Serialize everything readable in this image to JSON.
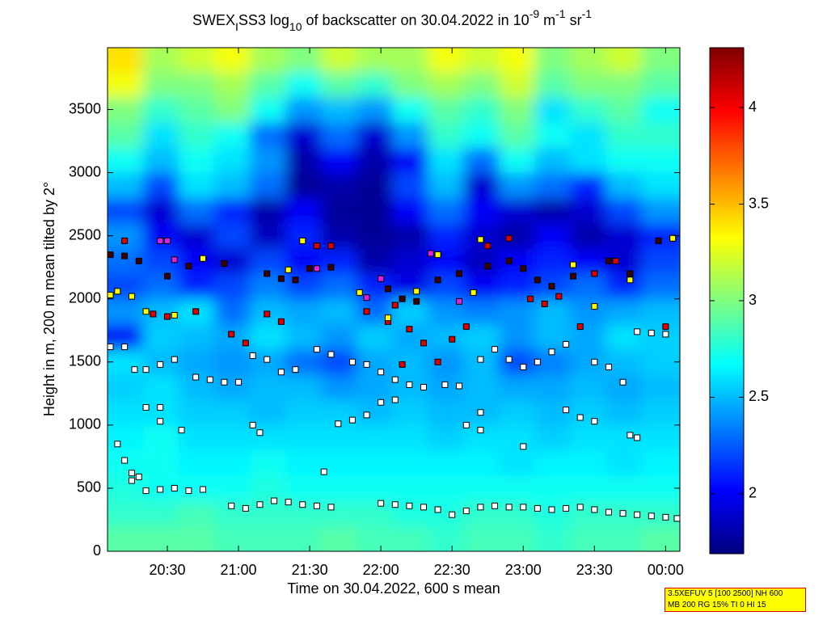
{
  "chart_data": {
    "type": "heatmap",
    "title": [
      {
        "text": "SWEX",
        "style": "normal"
      },
      {
        "text": "I",
        "style": "sub"
      },
      {
        "text": "SS3 log",
        "style": "normal"
      },
      {
        "text": "10",
        "style": "sub"
      },
      {
        "text": " of backscatter on 30.04.2022 in 10",
        "style": "normal"
      },
      {
        "text": "-9",
        "style": "sup"
      },
      {
        "text": " m",
        "style": "normal"
      },
      {
        "text": "-1",
        "style": "sup"
      },
      {
        "text": " sr",
        "style": "normal"
      },
      {
        "text": "-1",
        "style": "sup"
      }
    ],
    "x_label": "Time on 30.04.2022, 600 s mean",
    "y_label": "Height in m, 200 m mean tilted by 2°",
    "annotation": [
      "3.5XEFUV 5 [100 2500] NH 600",
      "MB 200 RG 15% TI 0 HI 15"
    ],
    "xlim": [
      20.08,
      24.1
    ],
    "ylim": [
      0,
      3990
    ],
    "xticks": [
      {
        "value": 20.5,
        "label": "20:30"
      },
      {
        "value": 21,
        "label": "21:00"
      },
      {
        "value": 21.5,
        "label": "21:30"
      },
      {
        "value": 22,
        "label": "22:00"
      },
      {
        "value": 22.5,
        "label": "22:30"
      },
      {
        "value": 23,
        "label": "23:00"
      },
      {
        "value": 23.5,
        "label": "23:30"
      },
      {
        "value": 24,
        "label": "00:00"
      }
    ],
    "yticks": [
      0,
      500,
      1000,
      1500,
      2000,
      2500,
      3000,
      3500
    ],
    "colormap": "jet",
    "clim": [
      1.69,
      4.31
    ],
    "colorbar_ticks": [
      2,
      2.5,
      3,
      3.5,
      4
    ],
    "cell_width": 0.25,
    "cell_height": 200,
    "x": [
      20.205,
      20.455,
      20.705,
      20.955,
      21.205,
      21.455,
      21.705,
      21.955,
      22.205,
      22.455,
      22.705,
      22.955,
      23.205,
      23.455,
      23.705,
      23.955
    ],
    "y": [
      100,
      300,
      500,
      700,
      900,
      1100,
      1300,
      1500,
      1700,
      1900,
      2100,
      2300,
      2500,
      2700,
      2900,
      3100,
      3300,
      3500,
      3700,
      3900
    ],
    "z": [
      [
        2.9,
        2.9,
        2.9,
        2.85,
        2.85,
        2.85,
        2.9,
        2.85,
        2.85,
        2.8,
        2.85,
        2.85,
        2.8,
        2.85,
        2.85,
        2.9
      ],
      [
        2.8,
        2.8,
        2.85,
        2.8,
        2.8,
        2.8,
        2.8,
        2.8,
        2.75,
        2.75,
        2.8,
        2.8,
        2.75,
        2.8,
        2.8,
        2.8
      ],
      [
        2.75,
        2.7,
        2.7,
        2.7,
        2.75,
        2.7,
        2.7,
        2.7,
        2.7,
        2.7,
        2.7,
        2.7,
        2.7,
        2.7,
        2.7,
        2.7
      ],
      [
        2.7,
        2.7,
        2.65,
        2.65,
        2.7,
        2.65,
        2.65,
        2.65,
        2.65,
        2.65,
        2.65,
        2.6,
        2.65,
        2.65,
        2.6,
        2.65
      ],
      [
        2.65,
        2.7,
        2.6,
        2.6,
        2.6,
        2.6,
        2.6,
        2.6,
        2.6,
        2.55,
        2.6,
        2.6,
        2.55,
        2.6,
        2.6,
        2.6
      ],
      [
        2.6,
        2.6,
        2.55,
        2.55,
        2.5,
        2.55,
        2.55,
        2.5,
        2.55,
        2.5,
        2.5,
        2.55,
        2.5,
        2.55,
        2.5,
        2.55
      ],
      [
        2.55,
        2.6,
        2.5,
        2.45,
        2.5,
        2.5,
        2.4,
        2.45,
        2.5,
        2.45,
        2.5,
        2.45,
        2.45,
        2.5,
        2.45,
        2.5
      ],
      [
        2.6,
        2.5,
        2.45,
        2.4,
        2.45,
        2.3,
        2.2,
        2.45,
        2.5,
        2.4,
        2.5,
        2.2,
        2.35,
        2.45,
        2.5,
        2.55
      ],
      [
        2.0,
        2.55,
        2.5,
        2.45,
        2.6,
        2.5,
        2.4,
        2.55,
        2.45,
        2.5,
        2.55,
        2.4,
        2.5,
        2.45,
        2.6,
        2.55
      ],
      [
        2.4,
        2.5,
        2.6,
        2.3,
        2.5,
        2.45,
        2.5,
        2.3,
        2.55,
        2.4,
        2.35,
        2.4,
        2.5,
        2.4,
        2.45,
        2.5
      ],
      [
        2.2,
        2.3,
        2.1,
        2.2,
        2.35,
        2.2,
        2.3,
        2.1,
        1.95,
        2.2,
        2.0,
        2.1,
        2.2,
        2.3,
        2.1,
        2.3
      ],
      [
        2.3,
        2.2,
        2.0,
        1.9,
        2.2,
        2.0,
        2.1,
        1.8,
        1.9,
        2.0,
        1.85,
        2.0,
        2.1,
        2.0,
        1.9,
        2.2
      ],
      [
        2.4,
        2.0,
        1.9,
        2.2,
        1.85,
        2.1,
        1.8,
        1.75,
        1.8,
        2.1,
        1.9,
        1.8,
        2.0,
        1.8,
        1.9,
        2.1
      ],
      [
        2.2,
        1.9,
        2.3,
        2.1,
        1.8,
        2.0,
        1.75,
        1.75,
        2.0,
        2.3,
        2.0,
        1.9,
        1.8,
        1.9,
        2.2,
        2.4
      ],
      [
        2.5,
        2.2,
        2.6,
        2.5,
        2.3,
        1.75,
        1.8,
        1.75,
        2.2,
        2.5,
        1.9,
        2.4,
        2.3,
        2.1,
        2.5,
        2.6
      ],
      [
        2.7,
        2.5,
        2.7,
        2.6,
        2.4,
        1.8,
        2.0,
        1.8,
        2.0,
        2.6,
        2.3,
        2.7,
        2.5,
        2.6,
        2.7,
        2.7
      ],
      [
        2.9,
        2.6,
        2.8,
        2.7,
        2.3,
        1.9,
        2.3,
        1.9,
        2.4,
        2.8,
        2.7,
        2.9,
        2.7,
        2.6,
        2.8,
        2.8
      ],
      [
        3.0,
        2.8,
        2.9,
        3.0,
        2.7,
        2.4,
        2.5,
        2.4,
        2.7,
        2.9,
        2.8,
        3.0,
        2.6,
        2.8,
        2.9,
        2.7
      ],
      [
        3.3,
        3.0,
        3.0,
        3.1,
        2.9,
        2.7,
        2.9,
        2.8,
        3.0,
        3.1,
        3.0,
        3.2,
        2.9,
        3.0,
        3.0,
        2.9
      ],
      [
        3.4,
        3.1,
        3.2,
        3.3,
        3.1,
        3.0,
        3.2,
        3.1,
        3.1,
        3.3,
        3.2,
        3.3,
        3.0,
        3.1,
        3.2,
        3.0
      ]
    ],
    "series": [
      {
        "color": "#ffffff",
        "x": [
          20.25,
          20.3,
          20.35,
          20.45,
          20.55,
          20.65,
          20.75,
          20.95,
          21.05,
          21.15,
          21.25,
          21.35,
          21.45,
          21.55,
          21.65,
          22.0,
          22.1,
          22.2,
          22.3,
          22.4,
          22.5,
          22.6,
          22.7,
          22.8,
          22.9,
          23.0,
          23.1,
          23.2,
          23.3,
          23.4,
          23.5,
          23.6,
          23.7,
          23.8,
          23.9,
          24.0,
          24.08,
          20.1,
          20.2,
          20.27,
          20.35,
          20.45,
          20.55,
          20.7,
          20.8,
          20.9,
          21.0,
          21.1,
          21.2,
          21.3,
          21.4,
          21.55,
          21.65,
          21.8,
          21.9,
          22.0,
          22.1,
          22.2,
          22.3,
          22.45,
          22.55,
          22.7,
          22.8,
          22.9,
          23.0,
          23.1,
          23.2,
          23.3,
          23.5,
          23.6,
          23.7,
          23.8,
          23.9,
          24.0,
          20.35,
          20.45,
          21.1,
          21.15,
          21.7,
          21.8,
          21.9,
          22.0,
          22.1,
          22.6,
          22.7,
          23.3,
          23.4,
          23.5,
          23.75,
          23.8,
          20.15,
          20.2,
          20.25,
          20.45,
          20.6,
          21.6,
          22.7,
          23.0
        ],
        "y": [
          620,
          590,
          480,
          490,
          500,
          480,
          490,
          360,
          340,
          370,
          400,
          390,
          370,
          360,
          350,
          380,
          370,
          360,
          350,
          330,
          290,
          320,
          350,
          360,
          350,
          350,
          340,
          330,
          340,
          350,
          330,
          310,
          300,
          290,
          280,
          270,
          260,
          1620,
          1620,
          1440,
          1440,
          1480,
          1520,
          1380,
          1360,
          1340,
          1340,
          1550,
          1520,
          1420,
          1440,
          1600,
          1560,
          1500,
          1480,
          1420,
          1360,
          1320,
          1300,
          1320,
          1310,
          1520,
          1600,
          1520,
          1460,
          1500,
          1580,
          1640,
          1500,
          1460,
          1340,
          1740,
          1730,
          1720,
          1140,
          1140,
          1000,
          940,
          1010,
          1040,
          1080,
          1180,
          1200,
          1000,
          960,
          1120,
          1060,
          1030,
          920,
          900,
          850,
          720,
          560,
          1030,
          960,
          630,
          1100,
          830
        ]
      },
      {
        "color": "#3a0000",
        "x": [
          20.1,
          20.2,
          20.3,
          20.5,
          20.65,
          20.9,
          21.2,
          21.3,
          21.4,
          21.5,
          21.65,
          22.05,
          22.15,
          22.25,
          22.4,
          22.55,
          22.75,
          22.9,
          23.0,
          23.1,
          23.2,
          23.35,
          23.6,
          23.75,
          23.95,
          24.05
        ],
        "y": [
          2350,
          2340,
          2300,
          2180,
          2260,
          2280,
          2200,
          2160,
          2150,
          2240,
          2250,
          2080,
          2000,
          1980,
          2150,
          2200,
          2260,
          2300,
          2240,
          2150,
          2100,
          2180,
          2300,
          2200,
          2460,
          2480
        ]
      },
      {
        "color": "#e00000",
        "x": [
          20.2,
          20.4,
          20.5,
          20.7,
          20.95,
          21.05,
          21.2,
          21.3,
          21.55,
          21.65,
          22.05,
          22.2,
          22.3,
          22.4,
          22.5,
          22.6,
          22.75,
          22.9,
          23.05,
          23.15,
          23.25,
          23.5,
          23.65,
          24.0,
          21.9,
          22.1,
          22.15,
          23.4
        ],
        "y": [
          2460,
          1880,
          1860,
          1900,
          1720,
          1650,
          1880,
          1820,
          2420,
          2420,
          1820,
          1760,
          1650,
          1500,
          1680,
          1780,
          2420,
          2480,
          2000,
          1960,
          2020,
          2200,
          2300,
          1780,
          1900,
          1950,
          1480,
          1780
        ]
      },
      {
        "color": "#ffff00",
        "x": [
          20.1,
          20.15,
          20.25,
          20.35,
          20.55,
          20.75,
          21.45,
          21.85,
          22.05,
          22.25,
          22.65,
          22.7,
          23.35,
          23.5,
          23.75,
          24.05,
          21.35,
          22.4
        ],
        "y": [
          2030,
          2060,
          2020,
          1900,
          1870,
          2320,
          2460,
          2050,
          1850,
          2060,
          2050,
          2470,
          2270,
          1940,
          2150,
          2480,
          2230,
          2350
        ]
      },
      {
        "color": "#e020e0",
        "x": [
          20.45,
          20.5,
          20.55,
          21.55,
          21.9,
          22.0,
          22.55,
          22.35
        ],
        "y": [
          2460,
          2460,
          2310,
          2240,
          2010,
          2160,
          1980,
          2360
        ]
      }
    ]
  }
}
